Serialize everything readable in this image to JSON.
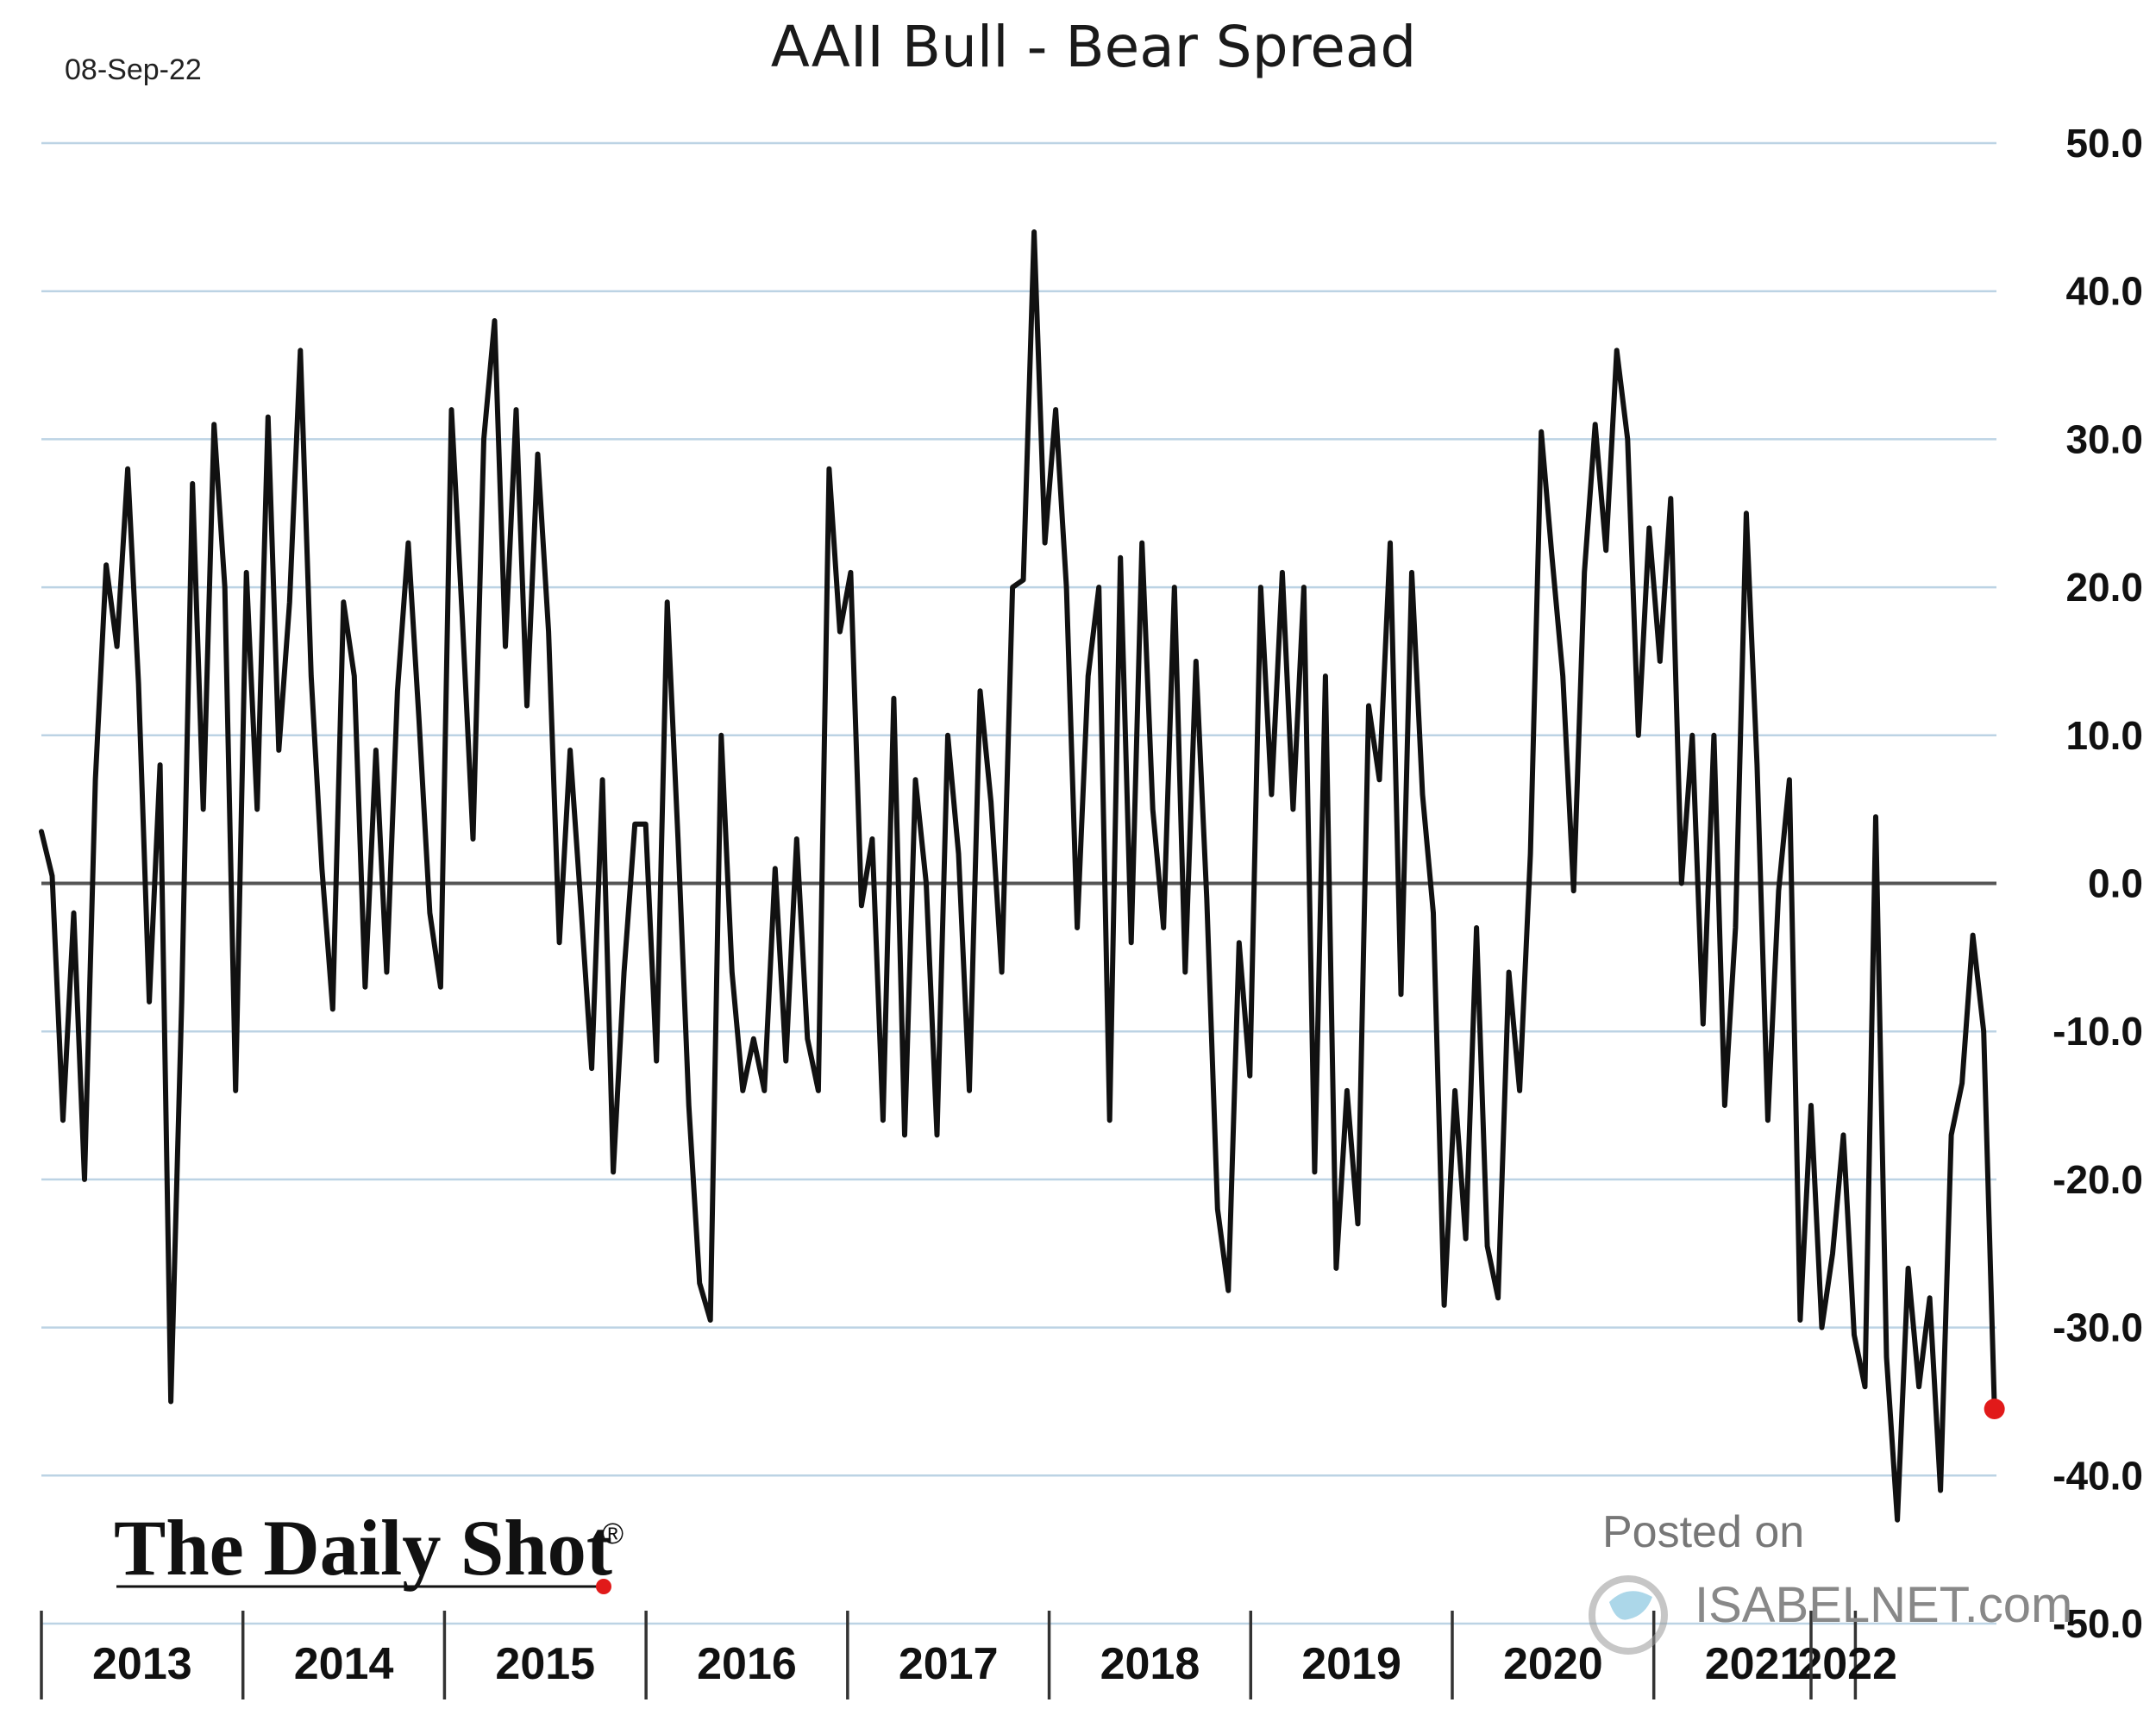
{
  "chart_data": {
    "type": "line",
    "title": "AAII Bull - Bear Spread",
    "date_label": "08-Sep-22",
    "ylim": [
      -50,
      50
    ],
    "yticks": [
      "50.0",
      "40.0",
      "30.0",
      "20.0",
      "10.0",
      "0.0",
      "-10.0",
      "-20.0",
      "-30.0",
      "-40.0",
      "-50.0"
    ],
    "ytick_values": [
      50,
      40,
      30,
      20,
      10,
      0,
      -10,
      -20,
      -30,
      -40,
      -50
    ],
    "xlim": [
      2013,
      2022.7
    ],
    "years": [
      "2013",
      "2014",
      "2015",
      "2016",
      "2017",
      "2018",
      "2019",
      "2020",
      "2021",
      "2022"
    ],
    "year_values": [
      2013,
      2014,
      2015,
      2016,
      2017,
      2018,
      2019,
      2020,
      2021,
      2022
    ],
    "grid": true,
    "series": [
      {
        "name": "AAII Bull - Bear Spread",
        "x_start": 2013,
        "x_end": 2022.69,
        "values": [
          3.5,
          0.5,
          -16,
          -2,
          -20,
          7,
          21.5,
          16,
          28,
          13.5,
          -8,
          8,
          -35,
          -8,
          27,
          5,
          31,
          20,
          -14,
          21,
          5,
          31.5,
          9,
          19,
          36,
          14,
          1,
          -8.5,
          19,
          14,
          -7,
          9,
          -6,
          13,
          23,
          11,
          -2,
          -7,
          32,
          18,
          3,
          30,
          38,
          16,
          32,
          12,
          29,
          17,
          -4,
          9,
          -1.5,
          -12.5,
          7,
          -19.5,
          -6,
          4,
          4,
          -12,
          19,
          3,
          -15,
          -27,
          -29.5,
          10,
          -6,
          -14,
          -10.5,
          -14,
          1,
          -12,
          3,
          -10.5,
          -14,
          28,
          17,
          21,
          -1.5,
          3,
          -16,
          12.5,
          -17,
          7,
          0,
          -17,
          10,
          2,
          -14,
          13,
          5.5,
          -6,
          20,
          20.5,
          44,
          23,
          32,
          20,
          -3,
          14,
          20,
          -16,
          22,
          -4,
          23,
          5,
          -3,
          20,
          -6,
          15,
          -1,
          -22,
          -27.5,
          -4,
          -13,
          20,
          6,
          21,
          5,
          20,
          -19.5,
          14,
          -26,
          -14,
          -23,
          12,
          7,
          23,
          -7.5,
          21,
          6,
          -2,
          -28.5,
          -14,
          -24,
          -3,
          -24.5,
          -28,
          -6,
          -14,
          2,
          30.5,
          22,
          14,
          -0.5,
          21,
          31,
          22.5,
          36,
          30,
          10,
          24,
          15,
          26,
          0,
          10,
          -9.5,
          10,
          -15,
          -3,
          25,
          8,
          -16,
          -0.5,
          7,
          -29.5,
          -15,
          -30,
          -25,
          -17,
          -30.5,
          -34,
          4.5,
          -32,
          -43,
          -26,
          -34,
          -28,
          -41,
          -17,
          -13.5,
          -3.5,
          -10,
          -35.5
        ]
      }
    ],
    "last_value": -35.5
  },
  "branding": {
    "logo_text": "The Daily Shot",
    "logo_mark": "®",
    "posted_on": "Posted on",
    "isabelnet": "ISABELNET.com"
  },
  "colors": {
    "line": "#111111",
    "grid": "#bcd3e4",
    "zero": "#555555",
    "marker": "#e11a1a"
  }
}
